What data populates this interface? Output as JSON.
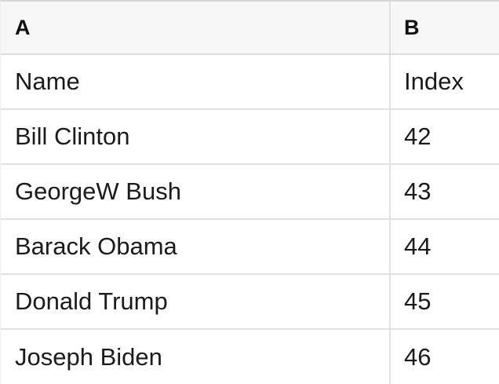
{
  "sheet": {
    "column_headers": [
      "A",
      "B"
    ],
    "rows": [
      {
        "a": "Name",
        "b": "Index"
      },
      {
        "a": "Bill Clinton",
        "b": "42"
      },
      {
        "a": "GeorgeW Bush",
        "b": "43"
      },
      {
        "a": "Barack Obama",
        "b": "44"
      },
      {
        "a": "Donald Trump",
        "b": "45"
      },
      {
        "a": "Joseph Biden",
        "b": "46"
      }
    ]
  },
  "colors": {
    "header_background": "#f7f7f7",
    "grid_line": "#e1e1e1",
    "top_border": "#d6d6d6",
    "text": "#1b1b1b"
  }
}
